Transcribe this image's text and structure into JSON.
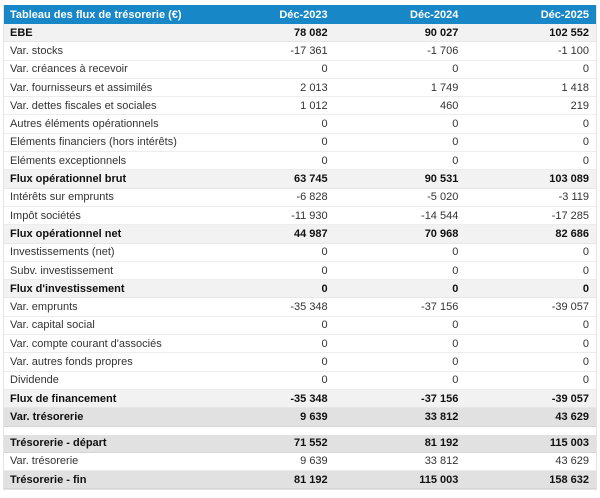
{
  "table": {
    "title": "Tableau des flux de trésorerie (€)",
    "columns": [
      "Déc-2023",
      "Déc-2024",
      "Déc-2025"
    ],
    "rows": [
      {
        "label": "EBE",
        "values": [
          "78 082",
          "90 027",
          "102 552"
        ],
        "type": "subtotal"
      },
      {
        "label": "Var. stocks",
        "values": [
          "-17 361",
          "-1 706",
          "-1 100"
        ],
        "type": "normal"
      },
      {
        "label": "Var. créances à recevoir",
        "values": [
          "0",
          "0",
          "0"
        ],
        "type": "normal"
      },
      {
        "label": "Var. fournisseurs et assimilés",
        "values": [
          "2 013",
          "1 749",
          "1 418"
        ],
        "type": "normal"
      },
      {
        "label": "Var. dettes fiscales et sociales",
        "values": [
          "1 012",
          "460",
          "219"
        ],
        "type": "normal"
      },
      {
        "label": "Autres éléments opérationnels",
        "values": [
          "0",
          "0",
          "0"
        ],
        "type": "normal"
      },
      {
        "label": "Eléments financiers (hors intérêts)",
        "values": [
          "0",
          "0",
          "0"
        ],
        "type": "normal"
      },
      {
        "label": "Eléments exceptionnels",
        "values": [
          "0",
          "0",
          "0"
        ],
        "type": "normal"
      },
      {
        "label": "Flux opérationnel brut",
        "values": [
          "63 745",
          "90 531",
          "103 089"
        ],
        "type": "subtotal"
      },
      {
        "label": "Intérêts sur emprunts",
        "values": [
          "-6 828",
          "-5 020",
          "-3 119"
        ],
        "type": "normal"
      },
      {
        "label": "Impôt sociétés",
        "values": [
          "-11 930",
          "-14 544",
          "-17 285"
        ],
        "type": "normal"
      },
      {
        "label": "Flux opérationnel net",
        "values": [
          "44 987",
          "70 968",
          "82 686"
        ],
        "type": "subtotal"
      },
      {
        "label": "Investissements (net)",
        "values": [
          "0",
          "0",
          "0"
        ],
        "type": "normal"
      },
      {
        "label": "Subv. investissement",
        "values": [
          "0",
          "0",
          "0"
        ],
        "type": "normal"
      },
      {
        "label": "Flux d'investissement",
        "values": [
          "0",
          "0",
          "0"
        ],
        "type": "subtotal"
      },
      {
        "label": "Var. emprunts",
        "values": [
          "-35 348",
          "-37 156",
          "-39 057"
        ],
        "type": "normal"
      },
      {
        "label": "Var. capital social",
        "values": [
          "0",
          "0",
          "0"
        ],
        "type": "normal"
      },
      {
        "label": "Var. compte courant d'associés",
        "values": [
          "0",
          "0",
          "0"
        ],
        "type": "normal"
      },
      {
        "label": "Var. autres fonds propres",
        "values": [
          "0",
          "0",
          "0"
        ],
        "type": "normal"
      },
      {
        "label": "Dividende",
        "values": [
          "0",
          "0",
          "0"
        ],
        "type": "normal"
      },
      {
        "label": "Flux de financement",
        "values": [
          "-35 348",
          "-37 156",
          "-39 057"
        ],
        "type": "subtotal"
      },
      {
        "label": "Var. trésorerie",
        "values": [
          "9 639",
          "33 812",
          "43 629"
        ],
        "type": "summary"
      },
      {
        "label": "",
        "values": [
          "",
          "",
          ""
        ],
        "type": "spacer"
      },
      {
        "label": "Trésorerie - départ",
        "values": [
          "71 552",
          "81 192",
          "115 003"
        ],
        "type": "summary"
      },
      {
        "label": "Var. trésorerie",
        "values": [
          "9 639",
          "33 812",
          "43 629"
        ],
        "type": "normal"
      },
      {
        "label": "Trésorerie - fin",
        "values": [
          "81 192",
          "115 003",
          "158 632"
        ],
        "type": "summary"
      }
    ]
  },
  "colors": {
    "header_bg": "#1787c8",
    "header_text": "#ffffff",
    "subtotal_bg": "#f2f2f2",
    "summary_bg": "#e1e1e1"
  }
}
